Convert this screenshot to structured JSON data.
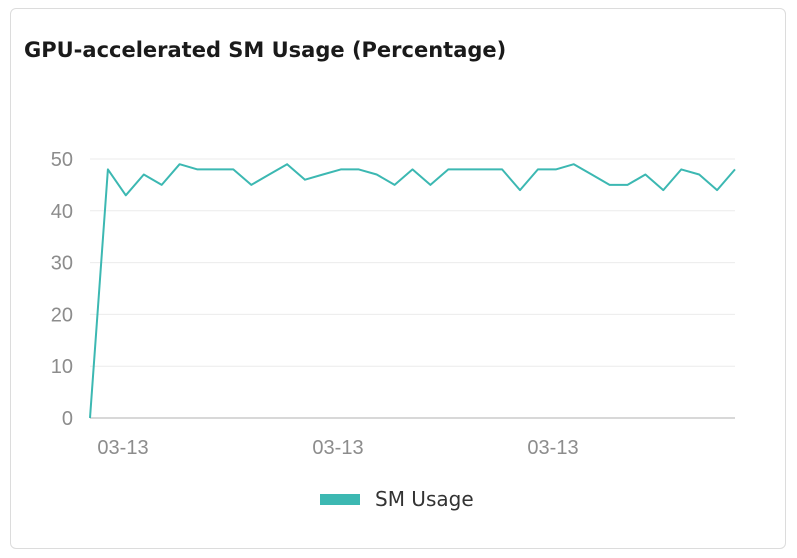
{
  "chart_data": {
    "type": "line",
    "title": "GPU-accelerated SM Usage (Percentage)",
    "xlabel": "",
    "ylabel": "",
    "ylim": [
      0,
      50
    ],
    "y_ticks": [
      0,
      10,
      20,
      30,
      40,
      50
    ],
    "x_tick_labels": [
      "03-13",
      "03-13",
      "03-13"
    ],
    "grid": true,
    "legend_position": "bottom-center",
    "colors": {
      "series": "#3cb8b2",
      "grid": "#ebebeb",
      "axis": "#cccccc"
    },
    "series": [
      {
        "name": "SM Usage",
        "values": [
          0,
          48,
          43,
          47,
          45,
          49,
          48,
          48,
          48,
          45,
          47,
          49,
          46,
          47,
          48,
          48,
          47,
          45,
          48,
          45,
          48,
          48,
          48,
          48,
          44,
          48,
          48,
          49,
          47,
          45,
          45,
          47,
          44,
          48,
          47,
          44,
          48
        ]
      }
    ]
  }
}
